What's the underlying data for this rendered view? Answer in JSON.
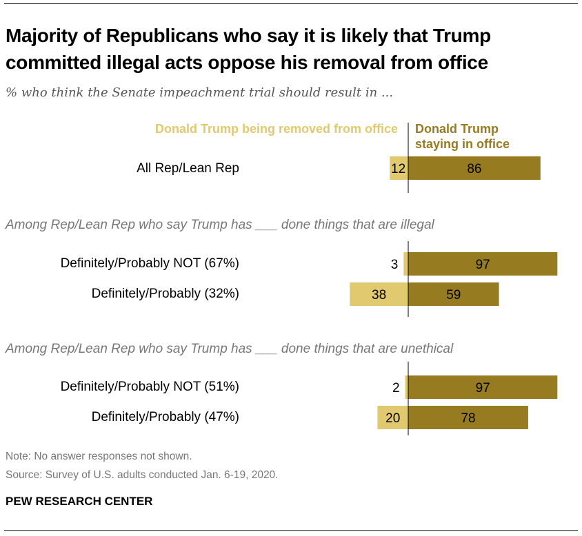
{
  "title": "Majority of Republicans who say it is likely that Trump committed illegal acts oppose his removal from office",
  "subtitle": "% who think the Senate impeachment trial should result in ...",
  "colors": {
    "removed": "#E0C96F",
    "staying": "#977B20"
  },
  "chart_data": {
    "type": "bar",
    "orientation": "horizontal-diverging",
    "legend": [
      {
        "name": "Donald Trump being removed from office",
        "color": "#E0C96F"
      },
      {
        "name": "Donald Trump staying in office",
        "color": "#977B20"
      }
    ],
    "groups": [
      {
        "heading": "",
        "rows": [
          {
            "label": "All Rep/Lean Rep",
            "removed": 12,
            "staying": 86
          }
        ]
      },
      {
        "heading": "Among Rep/Lean Rep who say Trump has ___ done things that are illegal",
        "rows": [
          {
            "label": "Definitely/Probably NOT (67%)",
            "removed": 3,
            "staying": 97
          },
          {
            "label": "Definitely/Probably (32%)",
            "removed": 38,
            "staying": 59
          }
        ]
      },
      {
        "heading": "Among Rep/Lean Rep who say Trump has ___ done things that are unethical",
        "rows": [
          {
            "label": "Definitely/Probably NOT (51%)",
            "removed": 2,
            "staying": 97
          },
          {
            "label": "Definitely/Probably (47%)",
            "removed": 20,
            "staying": 78
          }
        ]
      }
    ]
  },
  "note": "Note: No answer responses not shown.",
  "source": "Source: Survey of U.S. adults conducted Jan. 6-19, 2020.",
  "brand": "PEW RESEARCH CENTER"
}
